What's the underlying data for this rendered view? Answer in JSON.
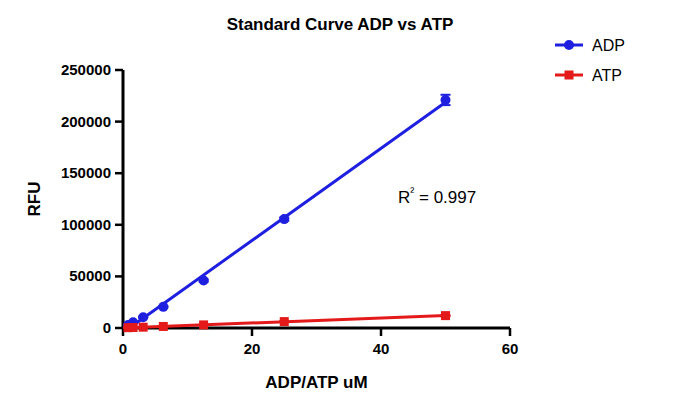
{
  "chart_data": {
    "type": "scatter",
    "title": "Standard Curve ADP vs ATP",
    "x_label": "ADP/ATP uM",
    "y_label": "RFU",
    "annotation": "R² = 0.997",
    "x": [
      0.78125,
      1.5625,
      3.125,
      6.25,
      12.5,
      25,
      50
    ],
    "series": [
      {
        "name": "ADP",
        "color": "#1f1fe0",
        "marker": "circle",
        "line_style": "solid",
        "values": [
          2800,
          5500,
          10500,
          20500,
          46000,
          105500,
          221000
        ],
        "errors": [
          200,
          300,
          400,
          600,
          1000,
          1500,
          5000
        ]
      },
      {
        "name": "ATP",
        "color": "#e41a1a",
        "marker": "square",
        "line_style": "solid",
        "values": [
          300,
          500,
          800,
          1500,
          3000,
          6200,
          12000
        ],
        "errors": [
          50,
          50,
          80,
          100,
          150,
          250,
          500
        ]
      }
    ],
    "xlim": [
      0,
      60
    ],
    "xticks": [
      0,
      20,
      40,
      60
    ],
    "ylim": [
      0,
      250000
    ],
    "yticks": [
      0,
      50000,
      100000,
      150000,
      200000,
      250000
    ],
    "legend": "right",
    "grid": false
  }
}
